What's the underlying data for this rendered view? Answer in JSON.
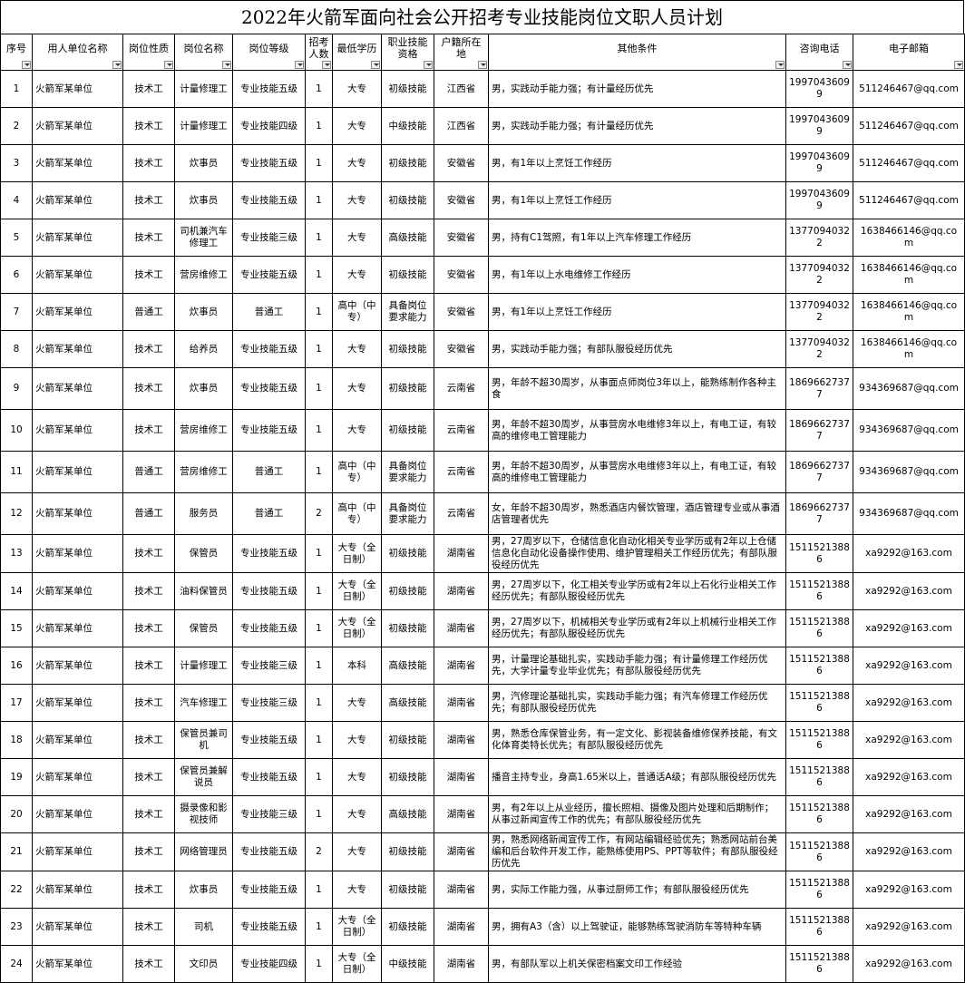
{
  "title": "2022年火箭军面向社会公开招考专业技能岗位文职人员计划",
  "table": {
    "header": [
      "序号",
      "用人单位名称",
      "岗位性质",
      "岗位名称",
      "岗位等级",
      "招考人数",
      "最低学历",
      "职业技能资格",
      "户籍所在地",
      "其他条件",
      "咨询电话",
      "电子邮箱"
    ],
    "rows": [
      [
        "1",
        "火箭军某单位",
        "技术工",
        "计量修理工",
        "专业技能五级",
        "1",
        "大专",
        "初级技能",
        "江西省",
        "男，实践动手能力强；有计量经历优先",
        "19970436099",
        "511246467@qq.com"
      ],
      [
        "2",
        "火箭军某单位",
        "技术工",
        "计量修理工",
        "专业技能四级",
        "1",
        "大专",
        "中级技能",
        "江西省",
        "男，实践动手能力强；有计量经历优先",
        "19970436099",
        "511246467@qq.com"
      ],
      [
        "3",
        "火箭军某单位",
        "技术工",
        "炊事员",
        "专业技能五级",
        "1",
        "大专",
        "初级技能",
        "安徽省",
        "男，有1年以上烹饪工作经历",
        "19970436099",
        "511246467@qq.com"
      ],
      [
        "4",
        "火箭军某单位",
        "技术工",
        "炊事员",
        "专业技能五级",
        "1",
        "大专",
        "初级技能",
        "安徽省",
        "男，有1年以上烹饪工作经历",
        "19970436099",
        "511246467@qq.com"
      ],
      [
        "5",
        "火箭军某单位",
        "技术工",
        "司机兼汽车修理工",
        "专业技能三级",
        "1",
        "大专",
        "高级技能",
        "安徽省",
        "男，持有C1驾照，有1年以上汽车修理工作经历",
        "13770940322",
        "1638466146@qq.com"
      ],
      [
        "6",
        "火箭军某单位",
        "技术工",
        "营房维修工",
        "专业技能五级",
        "1",
        "大专",
        "初级技能",
        "安徽省",
        "男，有1年以上水电维修工作经历",
        "13770940322",
        "1638466146@qq.com"
      ],
      [
        "7",
        "火箭军某单位",
        "普通工",
        "炊事员",
        "普通工",
        "1",
        "高中（中专）",
        "具备岗位要求能力",
        "安徽省",
        "男，有1年以上烹饪工作经历",
        "13770940322",
        "1638466146@qq.com"
      ],
      [
        "8",
        "火箭军某单位",
        "技术工",
        "给养员",
        "专业技能五级",
        "1",
        "大专",
        "初级技能",
        "安徽省",
        "男，实践动手能力强；有部队服役经历优先",
        "13770940322",
        "1638466146@qq.com"
      ],
      [
        "9",
        "火箭军某单位",
        "技术工",
        "炊事员",
        "专业技能五级",
        "1",
        "大专",
        "初级技能",
        "云南省",
        "男，年龄不超30周岁，从事面点师岗位3年以上，能熟练制作各种主食",
        "18696627377",
        "934369687@qq.com"
      ],
      [
        "10",
        "火箭军某单位",
        "技术工",
        "营房维修工",
        "专业技能五级",
        "1",
        "大专",
        "初级技能",
        "云南省",
        "男，年龄不超30周岁，从事营房水电维修3年以上，有电工证，有较高的维修电工管理能力",
        "18696627377",
        "934369687@qq.com"
      ],
      [
        "11",
        "火箭军某单位",
        "普通工",
        "营房维修工",
        "普通工",
        "1",
        "高中（中专）",
        "具备岗位要求能力",
        "云南省",
        "男，年龄不超30周岁，从事营房水电维修3年以上，有电工证，有较高的维修电工管理能力",
        "18696627377",
        "934369687@qq.com"
      ],
      [
        "12",
        "火箭军某单位",
        "普通工",
        "服务员",
        "普通工",
        "2",
        "高中（中专）",
        "具备岗位要求能力",
        "云南省",
        "女，年龄不超30周岁，熟悉酒店内餐饮管理，酒店管理专业或从事酒店管理者优先",
        "18696627377",
        "934369687@qq.com"
      ],
      [
        "13",
        "火箭军某单位",
        "技术工",
        "保管员",
        "专业技能五级",
        "1",
        "大专（全日制）",
        "初级技能",
        "湖南省",
        "男，27周岁以下，仓储信息化自动化相关专业学历或有2年以上仓储信息化自动化设备操作使用、维护管理相关工作经历优先；有部队服役经历优先",
        "15115213886",
        "xa9292@163.com"
      ],
      [
        "14",
        "火箭军某单位",
        "技术工",
        "油料保管员",
        "专业技能五级",
        "1",
        "大专（全日制）",
        "初级技能",
        "湖南省",
        "男，27周岁以下，化工相关专业学历或有2年以上石化行业相关工作经历优先；有部队服役经历优先",
        "15115213886",
        "xa9292@163.com"
      ],
      [
        "15",
        "火箭军某单位",
        "技术工",
        "保管员",
        "专业技能五级",
        "1",
        "大专（全日制）",
        "初级技能",
        "湖南省",
        "男，27周岁以下，机械相关专业学历或有2年以上机械行业相关工作经历优先；有部队服役经历优先",
        "15115213886",
        "xa9292@163.com"
      ],
      [
        "16",
        "火箭军某单位",
        "技术工",
        "计量修理工",
        "专业技能三级",
        "1",
        "本科",
        "高级技能",
        "湖南省",
        "男，计量理论基础扎实，实践动手能力强；有计量修理工作经历优先，大学计量专业毕业优先；有部队服役经历优先",
        "15115213886",
        "xa9292@163.com"
      ],
      [
        "17",
        "火箭军某单位",
        "技术工",
        "汽车修理工",
        "专业技能三级",
        "1",
        "大专",
        "高级技能",
        "湖南省",
        "男，汽修理论基础扎实，实践动手能力强；有汽车修理工作经历优先；有部队服役经历优先",
        "15115213886",
        "xa9292@163.com"
      ],
      [
        "18",
        "火箭军某单位",
        "技术工",
        "保管员兼司机",
        "专业技能五级",
        "1",
        "大专",
        "初级技能",
        "湖南省",
        "男，熟悉仓库保管业务，有一定文化、影视装备维修保养技能，有文化体育类特长优先；有部队服役经历优先",
        "15115213886",
        "xa9292@163.com"
      ],
      [
        "19",
        "火箭军某单位",
        "技术工",
        "保管员兼解说员",
        "专业技能五级",
        "1",
        "大专",
        "初级技能",
        "湖南省",
        "播音主持专业，身高1.65米以上，普通话A级；有部队服役经历优先",
        "15115213886",
        "xa9292@163.com"
      ],
      [
        "20",
        "火箭军某单位",
        "技术工",
        "摄录像和影视技师",
        "专业技能三级",
        "1",
        "大专",
        "高级技能",
        "湖南省",
        "男，有2年以上从业经历，擅长照相、摄像及图片处理和后期制作；从事过新闻宣传工作的优先；有部队服役经历优先",
        "15115213886",
        "xa9292@163.com"
      ],
      [
        "21",
        "火箭军某单位",
        "技术工",
        "网络管理员",
        "专业技能五级",
        "2",
        "大专",
        "初级技能",
        "湖南省",
        "男，熟悉网络新闻宣传工作，有网站编辑经验优先；熟悉网站前台美编和后台软件开发工作，能熟练使用PS、PPT等软件；有部队服役经历优先",
        "15115213886",
        "xa9292@163.com"
      ],
      [
        "22",
        "火箭军某单位",
        "技术工",
        "炊事员",
        "专业技能五级",
        "1",
        "大专",
        "初级技能",
        "湖南省",
        "男，实际工作能力强，从事过厨师工作；有部队服役经历优先",
        "15115213886",
        "xa9292@163.com"
      ],
      [
        "23",
        "火箭军某单位",
        "技术工",
        "司机",
        "专业技能五级",
        "1",
        "大专（全日制）",
        "初级技能",
        "湖南省",
        "男，拥有A3（含）以上驾驶证，能够熟练驾驶消防车等特种车辆",
        "15115213886",
        "xa9292@163.com"
      ],
      [
        "24",
        "火箭军某单位",
        "技术工",
        "文印员",
        "专业技能四级",
        "1",
        "大专（全日制）",
        "中级技能",
        "湖南省",
        "男，有部队军以上机关保密档案文印工作经验",
        "15115213886",
        "xa9292@163.com"
      ]
    ]
  }
}
